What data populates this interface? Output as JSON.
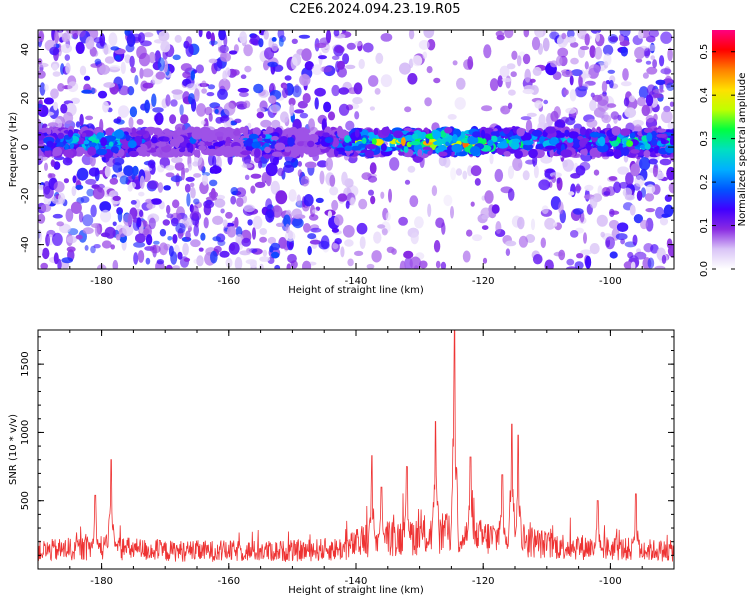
{
  "title": "C2E6.2024.094.23.19.R05",
  "chart_data": [
    {
      "type": "heatmap",
      "name": "spectrogram",
      "xlabel": "Height of straight line (km)",
      "ylabel": "Frequency (Hz)",
      "xlim": [
        -190,
        -90
      ],
      "ylim": [
        -50,
        48
      ],
      "x_ticks": [
        -180,
        -160,
        -140,
        -120,
        -100
      ],
      "y_ticks": [
        -40,
        -20,
        0,
        20,
        40
      ],
      "colorbar": {
        "label": "Normalized spectral amplitude",
        "range": [
          0.0,
          0.55
        ],
        "ticks": [
          0.0,
          0.1,
          0.2,
          0.3,
          0.4,
          0.5
        ],
        "colors": [
          "#ffffff",
          "#d9c4f7",
          "#8a2be2",
          "#4000ff",
          "#0055ff",
          "#00b0ff",
          "#00e0c0",
          "#00ff40",
          "#c0ff00",
          "#ffe000",
          "#ff8000",
          "#ff0000",
          "#ff0080"
        ]
      },
      "band": {
        "center_hz": 2,
        "half_width_hz": 5,
        "intensity_profile": [
          {
            "x": -190,
            "v": 0.2
          },
          {
            "x": -183,
            "v": 0.3
          },
          {
            "x": -178,
            "v": 0.35
          },
          {
            "x": -172,
            "v": 0.15
          },
          {
            "x": -166,
            "v": 0.2
          },
          {
            "x": -160,
            "v": 0.12
          },
          {
            "x": -154,
            "v": 0.3
          },
          {
            "x": -148,
            "v": 0.08
          },
          {
            "x": -140,
            "v": 0.35
          },
          {
            "x": -130,
            "v": 0.45
          },
          {
            "x": -124,
            "v": 0.5
          },
          {
            "x": -118,
            "v": 0.4
          },
          {
            "x": -112,
            "v": 0.3
          },
          {
            "x": -104,
            "v": 0.25
          },
          {
            "x": -98,
            "v": 0.35
          },
          {
            "x": -92,
            "v": 0.3
          }
        ]
      },
      "background_density_profile": [
        {
          "x": -190,
          "v": 0.55
        },
        {
          "x": -175,
          "v": 0.6
        },
        {
          "x": -160,
          "v": 0.55
        },
        {
          "x": -150,
          "v": 0.6
        },
        {
          "x": -142,
          "v": 0.35
        },
        {
          "x": -135,
          "v": 0.15
        },
        {
          "x": -125,
          "v": 0.12
        },
        {
          "x": -118,
          "v": 0.18
        },
        {
          "x": -110,
          "v": 0.4
        },
        {
          "x": -100,
          "v": 0.5
        },
        {
          "x": -90,
          "v": 0.5
        }
      ]
    },
    {
      "type": "line",
      "name": "snr",
      "xlabel": "Height of straight line (km)",
      "ylabel": "SNR (10 * v/v)",
      "xlim": [
        -190,
        -90
      ],
      "ylim": [
        0,
        1750
      ],
      "x_ticks": [
        -180,
        -160,
        -140,
        -120,
        -100
      ],
      "y_ticks": [
        500,
        1000,
        1500
      ],
      "color": "#ee3333",
      "baseline": [
        {
          "x": -190,
          "y": 150
        },
        {
          "x": -180,
          "y": 180
        },
        {
          "x": -170,
          "y": 150
        },
        {
          "x": -160,
          "y": 150
        },
        {
          "x": -150,
          "y": 150
        },
        {
          "x": -142,
          "y": 170
        },
        {
          "x": -138,
          "y": 250
        },
        {
          "x": -130,
          "y": 280
        },
        {
          "x": -125,
          "y": 300
        },
        {
          "x": -120,
          "y": 260
        },
        {
          "x": -115,
          "y": 260
        },
        {
          "x": -110,
          "y": 200
        },
        {
          "x": -100,
          "y": 170
        },
        {
          "x": -90,
          "y": 150
        }
      ],
      "peaks": [
        {
          "x": -181,
          "y": 540
        },
        {
          "x": -178.5,
          "y": 800
        },
        {
          "x": -137.5,
          "y": 830
        },
        {
          "x": -136,
          "y": 600
        },
        {
          "x": -132,
          "y": 750
        },
        {
          "x": -127.5,
          "y": 1080
        },
        {
          "x": -124.5,
          "y": 1750
        },
        {
          "x": -122,
          "y": 820
        },
        {
          "x": -117,
          "y": 690
        },
        {
          "x": -115.5,
          "y": 1060
        },
        {
          "x": -114.5,
          "y": 980
        },
        {
          "x": -102,
          "y": 500
        },
        {
          "x": -96,
          "y": 550
        }
      ]
    }
  ]
}
